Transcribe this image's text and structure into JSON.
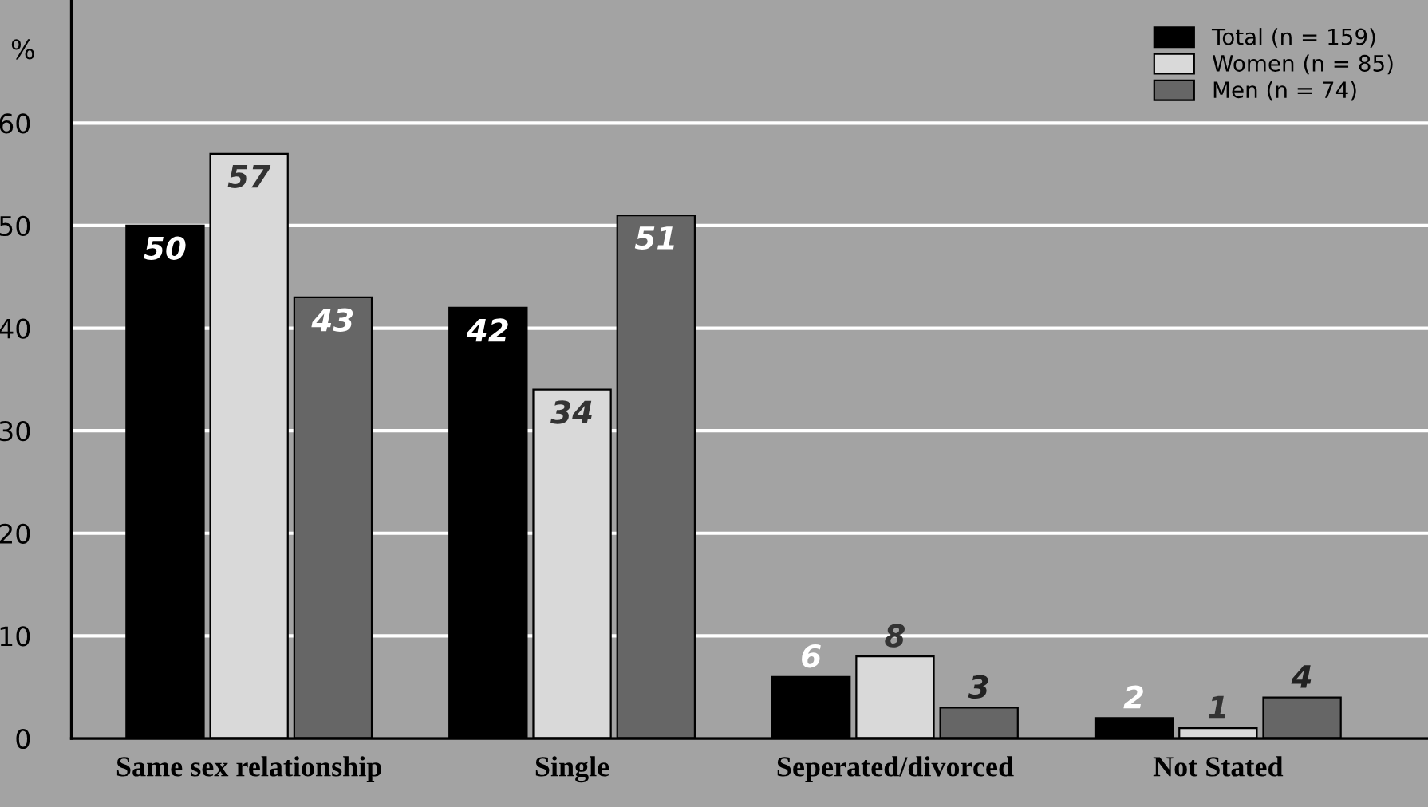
{
  "chart_data": {
    "type": "bar",
    "ylabel": "%",
    "categories": [
      "Same sex relationship",
      "Single",
      "Seperated/divorced",
      "Not Stated"
    ],
    "series": [
      {
        "name": "Total (n = 159)",
        "color": "#000000",
        "values": [
          50,
          42,
          6,
          2
        ]
      },
      {
        "name": "Women (n = 85)",
        "color": "#d9d9d9",
        "values": [
          57,
          34,
          8,
          1
        ]
      },
      {
        "name": "Men (n = 74)",
        "color": "#666666",
        "values": [
          43,
          51,
          3,
          4
        ]
      }
    ],
    "ylim": [
      0,
      72
    ],
    "yticks": [
      0,
      10,
      20,
      30,
      40,
      50,
      60
    ],
    "grid": "y",
    "legend": "top right",
    "data_labels": true
  }
}
